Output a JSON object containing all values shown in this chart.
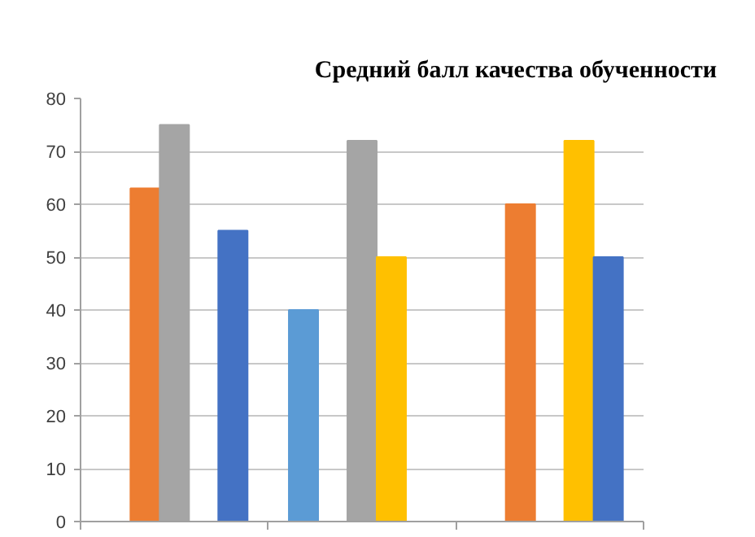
{
  "chart_data": {
    "type": "bar",
    "title": "Средний балл качества обученности",
    "categories": [
      null,
      null,
      null
    ],
    "series": [
      {
        "color": "#5b9bd5",
        "values": [
          null,
          40,
          null
        ]
      },
      {
        "color": "#ed7d31",
        "values": [
          63,
          null,
          60
        ]
      },
      {
        "color": "#a5a5a5",
        "values": [
          75,
          72,
          null
        ]
      },
      {
        "color": "#ffc000",
        "values": [
          null,
          50,
          72
        ]
      },
      {
        "color": "#4472c4",
        "values": [
          55,
          null,
          50
        ]
      }
    ],
    "ylim": [
      0,
      80
    ],
    "yticks": [
      0,
      10,
      20,
      30,
      40,
      50,
      60,
      70,
      80
    ],
    "grid": "y"
  }
}
